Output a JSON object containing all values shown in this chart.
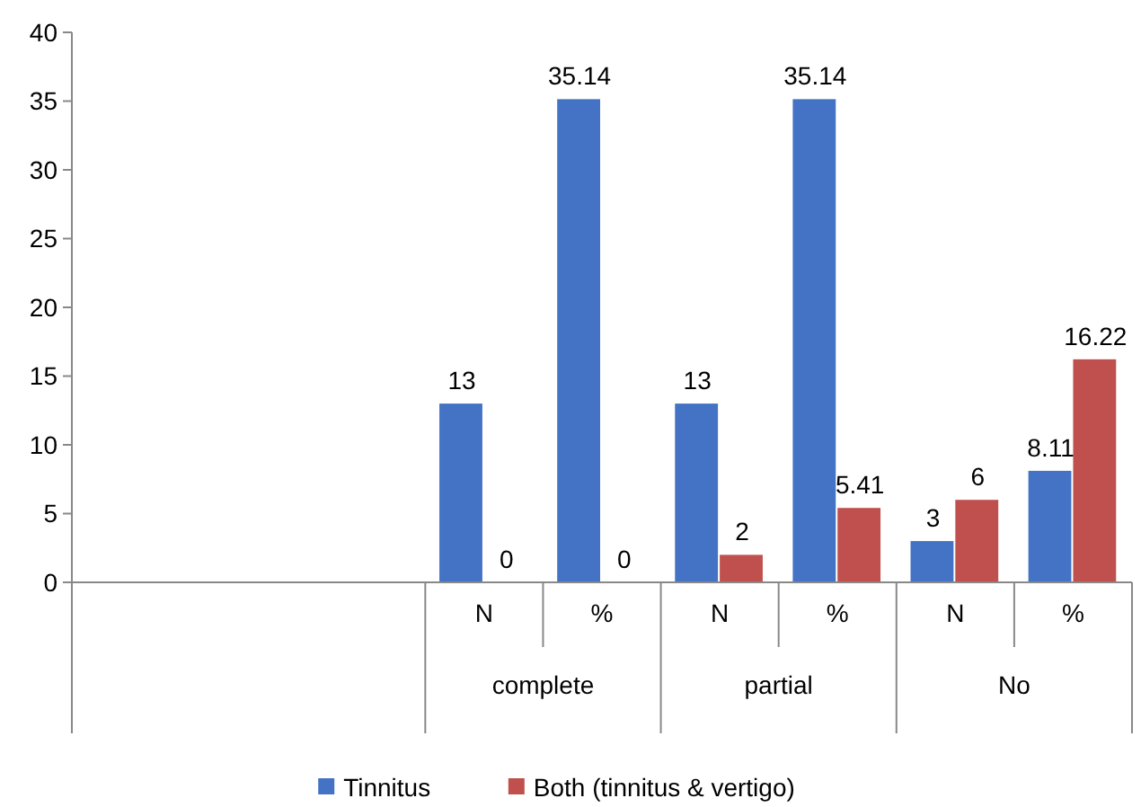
{
  "chart_data": {
    "type": "bar",
    "categories": [
      null,
      null,
      null,
      "N",
      "%",
      "N",
      "%",
      "N",
      "%"
    ],
    "series": [
      {
        "name": "Tinnitus",
        "color": "#4472c4",
        "values": [
          null,
          null,
          null,
          13,
          35.14,
          13,
          35.14,
          3,
          8.11
        ]
      },
      {
        "name": "Both (tinnitus & vertigo)",
        "color": "#c0504d",
        "values": [
          null,
          null,
          null,
          0,
          0,
          2,
          5.41,
          6,
          16.22
        ]
      }
    ],
    "ylim": [
      0,
      40
    ],
    "yticks": [
      0,
      5,
      10,
      15,
      20,
      25,
      30,
      35,
      40
    ],
    "data_labels": true,
    "legend": "bottom",
    "annotations": [
      "complete",
      "partial",
      "No"
    ]
  }
}
